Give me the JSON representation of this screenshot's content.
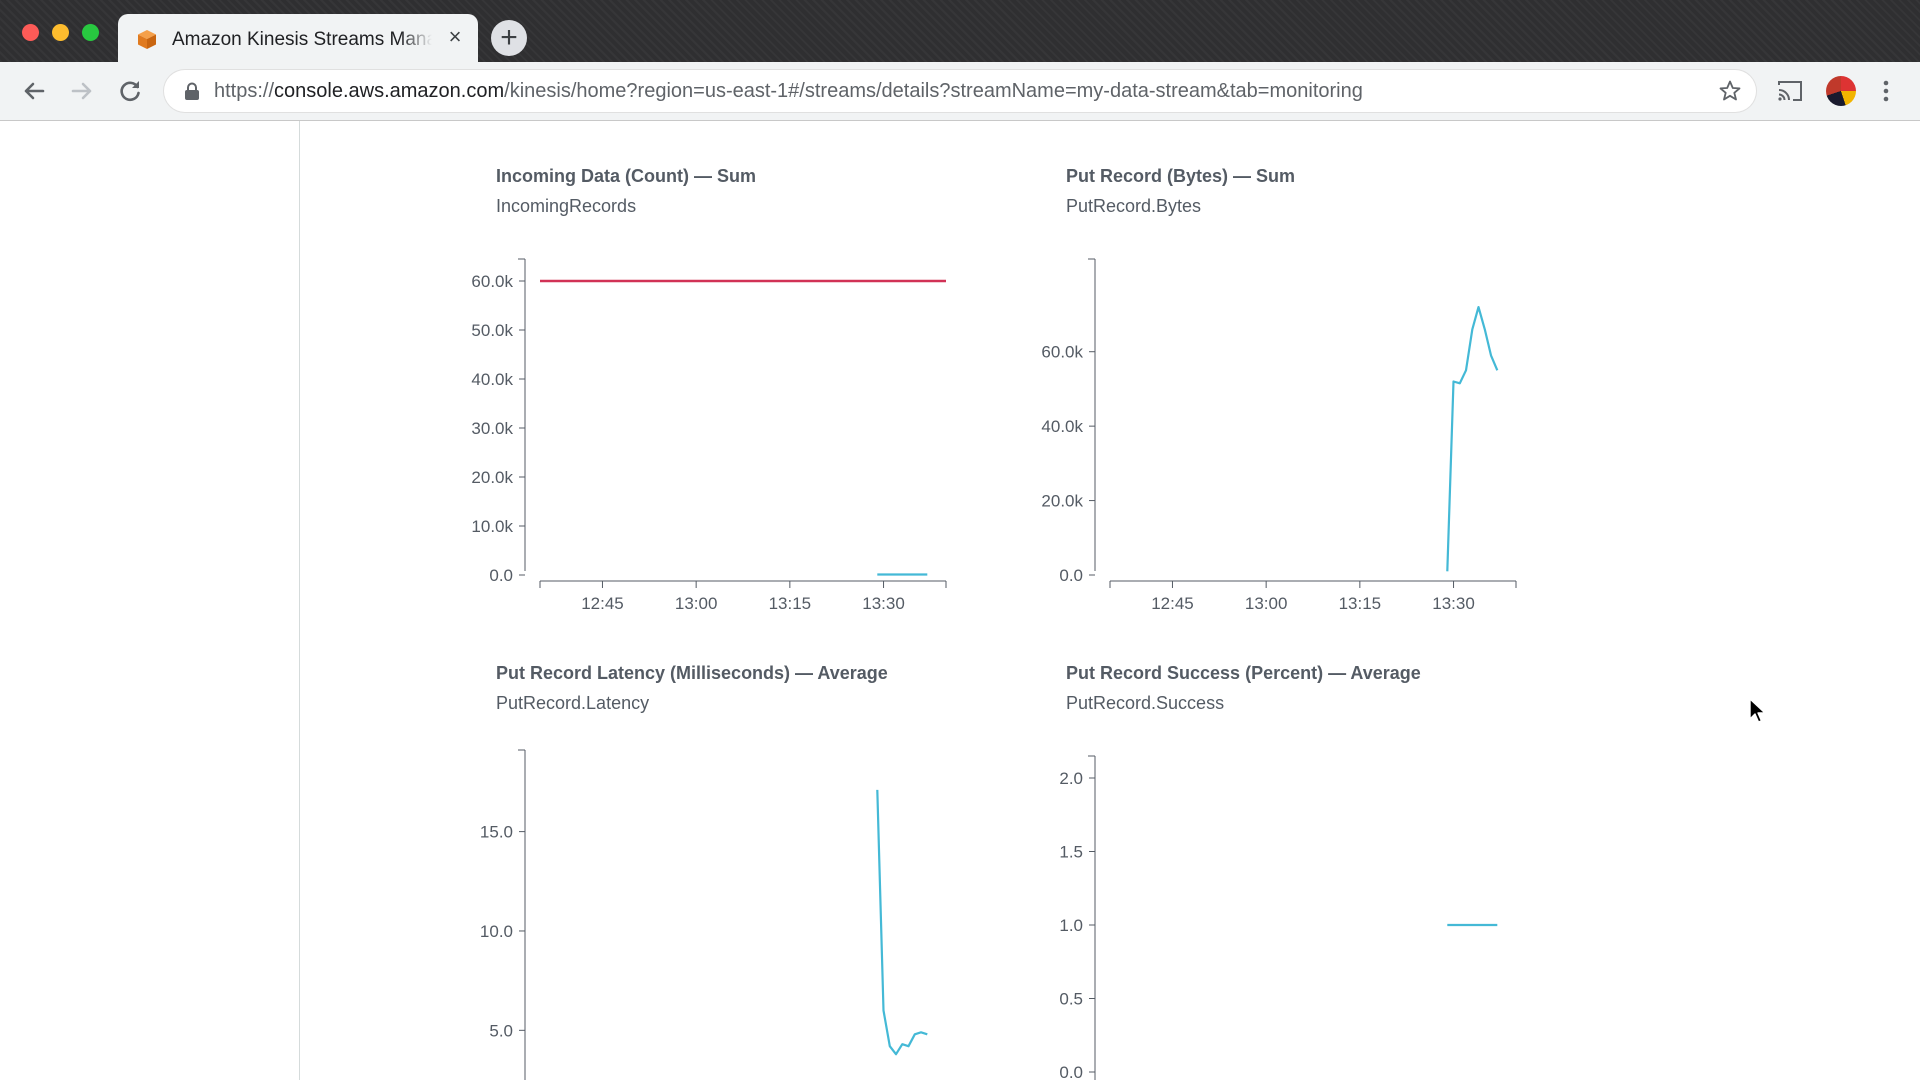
{
  "browser": {
    "tab_title": "Amazon Kinesis Streams Management Console",
    "new_tab_label": "+",
    "tab_close_label": "×",
    "url_scheme": "https://",
    "url_host": "console.aws.amazon.com",
    "url_path": "/kinesis/home?region=us-east-1#/streams/details?streamName=my-data-stream&tab=monitoring"
  },
  "colors": {
    "accent_line": "#44b9d6",
    "threshold_line": "#d13256",
    "axis": "#545b64"
  },
  "panels": [
    {
      "title": "Incoming Data (Count) — Sum",
      "subtitle": "IncomingRecords"
    },
    {
      "title": "Put Record (Bytes) — Sum",
      "subtitle": "PutRecord.Bytes"
    },
    {
      "title": "Put Record Latency (Milliseconds) — Average",
      "subtitle": "PutRecord.Latency"
    },
    {
      "title": "Put Record Success (Percent) — Average",
      "subtitle": "PutRecord.Success"
    }
  ],
  "chart_data": [
    {
      "type": "line",
      "title": "Incoming Data (Count) — Sum",
      "subtitle": "IncomingRecords",
      "x_ticks": [
        "12:45",
        "13:00",
        "13:15",
        "13:30"
      ],
      "y_ticks": [
        "0.0",
        "10.0k",
        "20.0k",
        "30.0k",
        "40.0k",
        "50.0k",
        "60.0k"
      ],
      "ylim": [
        0,
        60000
      ],
      "xlim": [
        "12:35",
        "13:40"
      ],
      "series": [
        {
          "style": "threshold",
          "color": "#d13256",
          "points": [
            [
              "12:35",
              60000
            ],
            [
              "13:40",
              60000
            ]
          ]
        },
        {
          "style": "metric",
          "color": "#44b9d6",
          "points": [
            [
              "13:29",
              100
            ],
            [
              "13:37",
              100
            ]
          ]
        }
      ]
    },
    {
      "type": "line",
      "title": "Put Record (Bytes) — Sum",
      "subtitle": "PutRecord.Bytes",
      "x_ticks": [
        "12:45",
        "13:00",
        "13:15",
        "13:30"
      ],
      "y_ticks": [
        "0.0",
        "20.0k",
        "40.0k",
        "60.0k"
      ],
      "ylim": [
        0,
        79000
      ],
      "xlim": [
        "12:35",
        "13:40"
      ],
      "series": [
        {
          "style": "metric",
          "color": "#44b9d6",
          "points": [
            [
              "13:29",
              1000
            ],
            [
              "13:30",
              52000
            ],
            [
              "13:31",
              51500
            ],
            [
              "13:32",
              55000
            ],
            [
              "13:33",
              66000
            ],
            [
              "13:34",
              72000
            ],
            [
              "13:35",
              66000
            ],
            [
              "13:36",
              59000
            ],
            [
              "13:37",
              55000
            ]
          ]
        }
      ]
    },
    {
      "type": "line",
      "title": "Put Record Latency (Milliseconds) — Average",
      "subtitle": "PutRecord.Latency",
      "x_ticks": [],
      "y_ticks": [
        "5.0",
        "10.0",
        "15.0"
      ],
      "ylim": [
        2.5,
        18.0
      ],
      "xlim": [
        "12:35",
        "13:40"
      ],
      "series": [
        {
          "style": "metric",
          "color": "#44b9d6",
          "points": [
            [
              "13:29",
              17.1
            ],
            [
              "13:30",
              6.0
            ],
            [
              "13:31",
              4.2
            ],
            [
              "13:32",
              3.8
            ],
            [
              "13:33",
              4.3
            ],
            [
              "13:34",
              4.2
            ],
            [
              "13:35",
              4.8
            ],
            [
              "13:36",
              4.9
            ],
            [
              "13:37",
              4.8
            ]
          ]
        }
      ]
    },
    {
      "type": "line",
      "title": "Put Record Success (Percent) — Average",
      "subtitle": "PutRecord.Success",
      "x_ticks": [],
      "y_ticks": [
        "0.0",
        "0.5",
        "1.0",
        "1.5",
        "2.0"
      ],
      "ylim": [
        0,
        2.0
      ],
      "xlim": [
        "12:35",
        "13:40"
      ],
      "series": [
        {
          "style": "metric",
          "color": "#44b9d6",
          "points": [
            [
              "13:29",
              1.0
            ],
            [
              "13:37",
              1.0
            ]
          ]
        }
      ]
    }
  ]
}
